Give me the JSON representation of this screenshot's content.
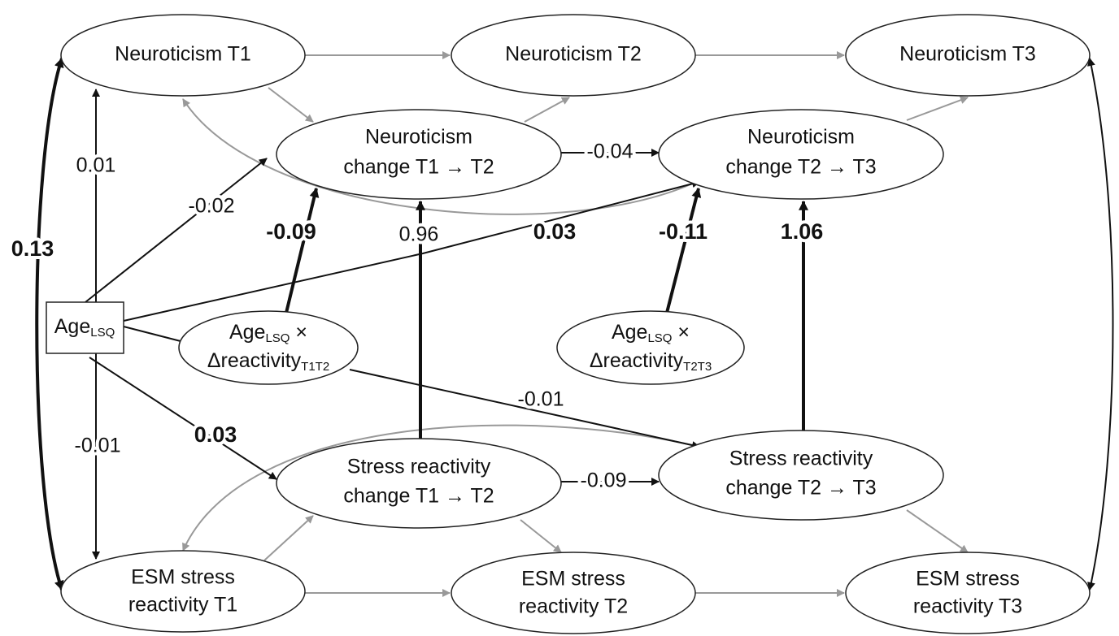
{
  "nodes": {
    "neuroticism_t1": "Neuroticism T1",
    "neuroticism_t2": "Neuroticism T2",
    "neuroticism_t3": "Neuroticism T3",
    "neuroticism_change_t1t2": [
      "Neuroticism",
      "change T1 → T2"
    ],
    "neuroticism_change_t2t3": [
      "Neuroticism",
      "change T2 → T3"
    ],
    "age": {
      "text": "Age",
      "sub": "LSQ"
    },
    "interaction_t1t2": {
      "text": "Age",
      "sub": "LSQ",
      "suffix": " ×",
      "line2": "Δreactivity",
      "sub2": "T1T2"
    },
    "interaction_t2t3": {
      "text": "Age",
      "sub": "LSQ",
      "suffix": " ×",
      "line2": "Δreactivity",
      "sub2": "T2T3"
    },
    "stress_change_t1t2": [
      "Stress reactivity",
      "change T1 → T2"
    ],
    "stress_change_t2t3": [
      "Stress reactivity",
      "change T2 → T3"
    ],
    "esm_t1": [
      "ESM stress",
      "reactivity T1"
    ],
    "esm_t2": [
      "ESM stress",
      "reactivity T2"
    ],
    "esm_t3": [
      "ESM stress",
      "reactivity T3"
    ]
  },
  "paths": {
    "age_to_neuroticism_t1": "0.01",
    "age_to_neuroticism_change_t1t2": "-0.02",
    "interaction_t1t2_to_neuroticism_change_t1t2": "-0.09",
    "stress_change_t1t2_to_neuroticism_change_t1t2": "0.96",
    "age_to_neuroticism_change_t2t3": "0.03",
    "interaction_t2t3_to_neuroticism_change_t2t3": "-0.11",
    "stress_change_t2t3_to_neuroticism_change_t2t3": "1.06",
    "neuroticism_t1_with_esm_t1": "0.13",
    "neuroticism_change_t1t2_to_t2t3": "-0.04",
    "interaction_t1t2_to_stress_change_t2t3": "-0.01",
    "age_to_stress_change_t1t2": "0.03",
    "age_to_esm_t1": "-0.01",
    "stress_change_t1t2_to_t2t3": "-0.09"
  }
}
